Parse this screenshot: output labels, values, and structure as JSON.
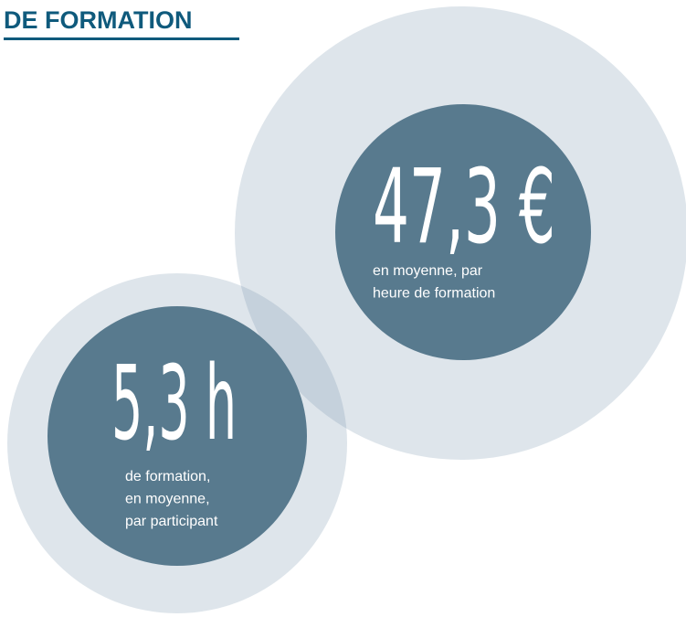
{
  "header": {
    "title": "DE FORMATION"
  },
  "stats": [
    {
      "value": "47,3 €",
      "lines": [
        "en moyenne, par",
        "heure de formation"
      ]
    },
    {
      "value": "5,3 h",
      "lines": [
        "de formation,",
        "en moyenne,",
        "par participant"
      ]
    }
  ]
}
